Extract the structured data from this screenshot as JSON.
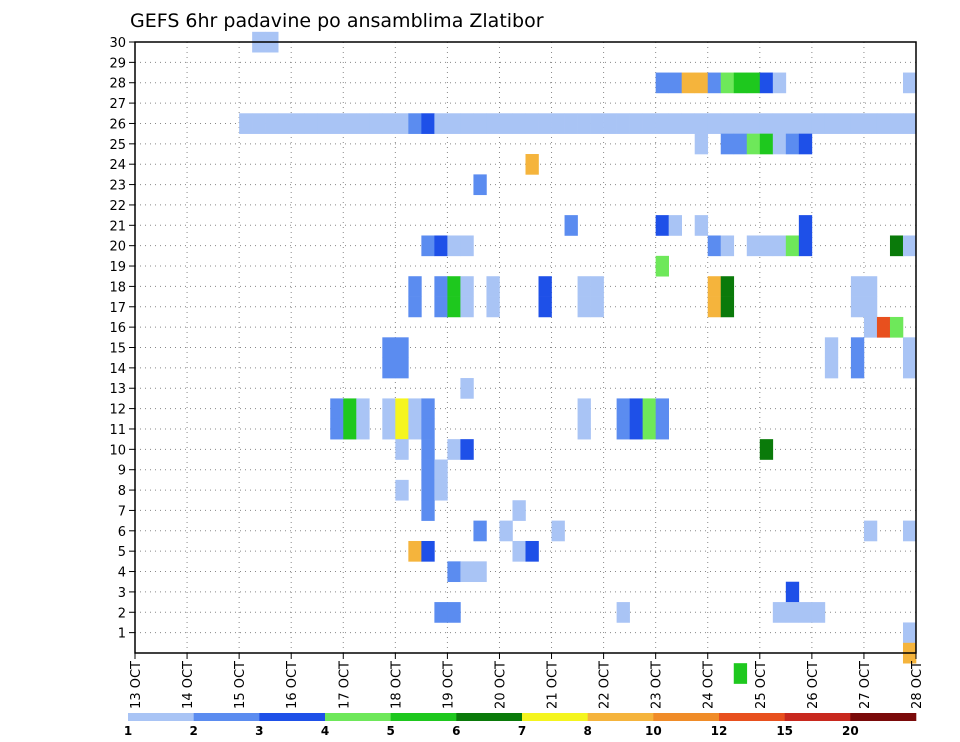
{
  "chart_data": {
    "type": "heatmap",
    "title": "GEFS 6hr padavine po ansamblima Zlatibor",
    "xlabel": "",
    "ylabel": "",
    "x_ticks": [
      "13 OCT",
      "14 OCT",
      "15 OCT",
      "16 OCT",
      "17 OCT",
      "18 OCT",
      "19 OCT",
      "20 OCT",
      "21 OCT",
      "22 OCT",
      "23 OCT",
      "24 OCT",
      "25 OCT",
      "26 OCT",
      "27 OCT",
      "28 OCT"
    ],
    "y_ticks": [
      1,
      2,
      3,
      4,
      5,
      6,
      7,
      8,
      9,
      10,
      11,
      12,
      13,
      14,
      15,
      16,
      17,
      18,
      19,
      20,
      21,
      22,
      23,
      24,
      25,
      26,
      27,
      28,
      29,
      30
    ],
    "xlim": [
      0,
      60
    ],
    "ylim": [
      0,
      30
    ],
    "grid": true,
    "colorbar": {
      "labels": [
        "1",
        "2",
        "3",
        "4",
        "5",
        "6",
        "7",
        "8",
        "10",
        "12",
        "15",
        "20"
      ],
      "colors": [
        "#a9c4f5",
        "#5b8cf0",
        "#1e50e8",
        "#6ee85a",
        "#1ec81e",
        "#0a7a0a",
        "#f5f51e",
        "#f5b43c",
        "#f08c28",
        "#e8501e",
        "#c8281e",
        "#7a0a0a"
      ]
    },
    "cells": [
      [
        9,
        30,
        1
      ],
      [
        10,
        30,
        1
      ],
      [
        40,
        28,
        2
      ],
      [
        41,
        28,
        2
      ],
      [
        42,
        28,
        8
      ],
      [
        43,
        28,
        8
      ],
      [
        44,
        28,
        2
      ],
      [
        45,
        28,
        4
      ],
      [
        46,
        28,
        5
      ],
      [
        47,
        28,
        5
      ],
      [
        48,
        28,
        3
      ],
      [
        49,
        28,
        1
      ],
      [
        59,
        28,
        1
      ],
      [
        8,
        26,
        1
      ],
      [
        9,
        26,
        1
      ],
      [
        10,
        26,
        1
      ],
      [
        11,
        26,
        1
      ],
      [
        12,
        26,
        1
      ],
      [
        13,
        26,
        1
      ],
      [
        14,
        26,
        1
      ],
      [
        15,
        26,
        1
      ],
      [
        16,
        26,
        1
      ],
      [
        17,
        26,
        1
      ],
      [
        18,
        26,
        1
      ],
      [
        19,
        26,
        1
      ],
      [
        20,
        26,
        1
      ],
      [
        21,
        26,
        2
      ],
      [
        22,
        26,
        3
      ],
      [
        23,
        26,
        1
      ],
      [
        24,
        26,
        1
      ],
      [
        25,
        26,
        1
      ],
      [
        26,
        26,
        1
      ],
      [
        27,
        26,
        1
      ],
      [
        28,
        26,
        1
      ],
      [
        29,
        26,
        1
      ],
      [
        30,
        26,
        1
      ],
      [
        31,
        26,
        1
      ],
      [
        32,
        26,
        1
      ],
      [
        33,
        26,
        1
      ],
      [
        34,
        26,
        1
      ],
      [
        35,
        26,
        1
      ],
      [
        36,
        26,
        1
      ],
      [
        37,
        26,
        1
      ],
      [
        38,
        26,
        1
      ],
      [
        39,
        26,
        1
      ],
      [
        40,
        26,
        1
      ],
      [
        41,
        26,
        1
      ],
      [
        42,
        26,
        1
      ],
      [
        43,
        26,
        1
      ],
      [
        44,
        26,
        1
      ],
      [
        45,
        26,
        1
      ],
      [
        46,
        26,
        1
      ],
      [
        47,
        26,
        1
      ],
      [
        48,
        26,
        1
      ],
      [
        49,
        26,
        1
      ],
      [
        50,
        26,
        1
      ],
      [
        51,
        26,
        1
      ],
      [
        52,
        26,
        1
      ],
      [
        53,
        26,
        1
      ],
      [
        54,
        26,
        1
      ],
      [
        55,
        26,
        1
      ],
      [
        56,
        26,
        1
      ],
      [
        57,
        26,
        1
      ],
      [
        58,
        26,
        1
      ],
      [
        59,
        26,
        1
      ],
      [
        43,
        25,
        1
      ],
      [
        45,
        25,
        2
      ],
      [
        46,
        25,
        2
      ],
      [
        47,
        25,
        4
      ],
      [
        48,
        25,
        5
      ],
      [
        49,
        25,
        1
      ],
      [
        50,
        25,
        2
      ],
      [
        51,
        25,
        3
      ],
      [
        30,
        24,
        8
      ],
      [
        26,
        23,
        2
      ],
      [
        33,
        21,
        2
      ],
      [
        40,
        21,
        3
      ],
      [
        41,
        21,
        1
      ],
      [
        43,
        21,
        1
      ],
      [
        51,
        21,
        3
      ],
      [
        22,
        20,
        2
      ],
      [
        23,
        20,
        3
      ],
      [
        24,
        20,
        1
      ],
      [
        25,
        20,
        1
      ],
      [
        44,
        20,
        2
      ],
      [
        45,
        20,
        1
      ],
      [
        47,
        20,
        1
      ],
      [
        48,
        20,
        1
      ],
      [
        49,
        20,
        1
      ],
      [
        50,
        20,
        4
      ],
      [
        51,
        20,
        3
      ],
      [
        58,
        20,
        6
      ],
      [
        59,
        20,
        1
      ],
      [
        40,
        19,
        4
      ],
      [
        21,
        18,
        2
      ],
      [
        23,
        18,
        2
      ],
      [
        24,
        18,
        5
      ],
      [
        25,
        18,
        1
      ],
      [
        27,
        18,
        1
      ],
      [
        31,
        18,
        3
      ],
      [
        34,
        18,
        1
      ],
      [
        35,
        18,
        1
      ],
      [
        44,
        18,
        8
      ],
      [
        45,
        18,
        6
      ],
      [
        55,
        18,
        1
      ],
      [
        56,
        18,
        1
      ],
      [
        21,
        17,
        2
      ],
      [
        23,
        17,
        2
      ],
      [
        24,
        17,
        5
      ],
      [
        25,
        17,
        1
      ],
      [
        27,
        17,
        1
      ],
      [
        31,
        17,
        3
      ],
      [
        34,
        17,
        1
      ],
      [
        35,
        17,
        1
      ],
      [
        44,
        17,
        8
      ],
      [
        45,
        17,
        6
      ],
      [
        55,
        17,
        1
      ],
      [
        56,
        17,
        1
      ],
      [
        56,
        16,
        1
      ],
      [
        57,
        16,
        10
      ],
      [
        58,
        16,
        4
      ],
      [
        19,
        15,
        2
      ],
      [
        20,
        15,
        2
      ],
      [
        53,
        15,
        1
      ],
      [
        55,
        15,
        2
      ],
      [
        59,
        15,
        1
      ],
      [
        19,
        14,
        2
      ],
      [
        20,
        14,
        2
      ],
      [
        53,
        14,
        1
      ],
      [
        55,
        14,
        2
      ],
      [
        59,
        14,
        1
      ],
      [
        25,
        13,
        1
      ],
      [
        15,
        12,
        2
      ],
      [
        16,
        12,
        5
      ],
      [
        17,
        12,
        1
      ],
      [
        19,
        12,
        1
      ],
      [
        20,
        12,
        7
      ],
      [
        21,
        12,
        1
      ],
      [
        22,
        12,
        2
      ],
      [
        34,
        12,
        1
      ],
      [
        37,
        12,
        2
      ],
      [
        38,
        12,
        3
      ],
      [
        39,
        12,
        4
      ],
      [
        40,
        12,
        2
      ],
      [
        15,
        11,
        2
      ],
      [
        16,
        11,
        5
      ],
      [
        17,
        11,
        1
      ],
      [
        19,
        11,
        1
      ],
      [
        20,
        11,
        7
      ],
      [
        21,
        11,
        1
      ],
      [
        22,
        11,
        2
      ],
      [
        34,
        11,
        1
      ],
      [
        37,
        11,
        2
      ],
      [
        38,
        11,
        3
      ],
      [
        39,
        11,
        4
      ],
      [
        40,
        11,
        2
      ],
      [
        20,
        10,
        1
      ],
      [
        22,
        10,
        2
      ],
      [
        24,
        10,
        1
      ],
      [
        25,
        10,
        3
      ],
      [
        48,
        10,
        6
      ],
      [
        22,
        9,
        2
      ],
      [
        23,
        9,
        1
      ],
      [
        20,
        8,
        1
      ],
      [
        22,
        8,
        2
      ],
      [
        23,
        8,
        1
      ],
      [
        22,
        7,
        2
      ],
      [
        29,
        7,
        1
      ],
      [
        26,
        6,
        2
      ],
      [
        28,
        6,
        1
      ],
      [
        32,
        6,
        1
      ],
      [
        56,
        6,
        1
      ],
      [
        59,
        6,
        1
      ],
      [
        21,
        5,
        8
      ],
      [
        22,
        5,
        3
      ],
      [
        29,
        5,
        1
      ],
      [
        30,
        5,
        3
      ],
      [
        24,
        4,
        2
      ],
      [
        25,
        4,
        1
      ],
      [
        26,
        4,
        1
      ],
      [
        50,
        3,
        3
      ],
      [
        23,
        2,
        2
      ],
      [
        24,
        2,
        2
      ],
      [
        37,
        2,
        1
      ],
      [
        49,
        2,
        1
      ],
      [
        50,
        2,
        1
      ],
      [
        51,
        2,
        1
      ],
      [
        52,
        2,
        1
      ],
      [
        59,
        1,
        1
      ],
      [
        59,
        0,
        8
      ],
      [
        46,
        -1,
        5
      ]
    ]
  }
}
